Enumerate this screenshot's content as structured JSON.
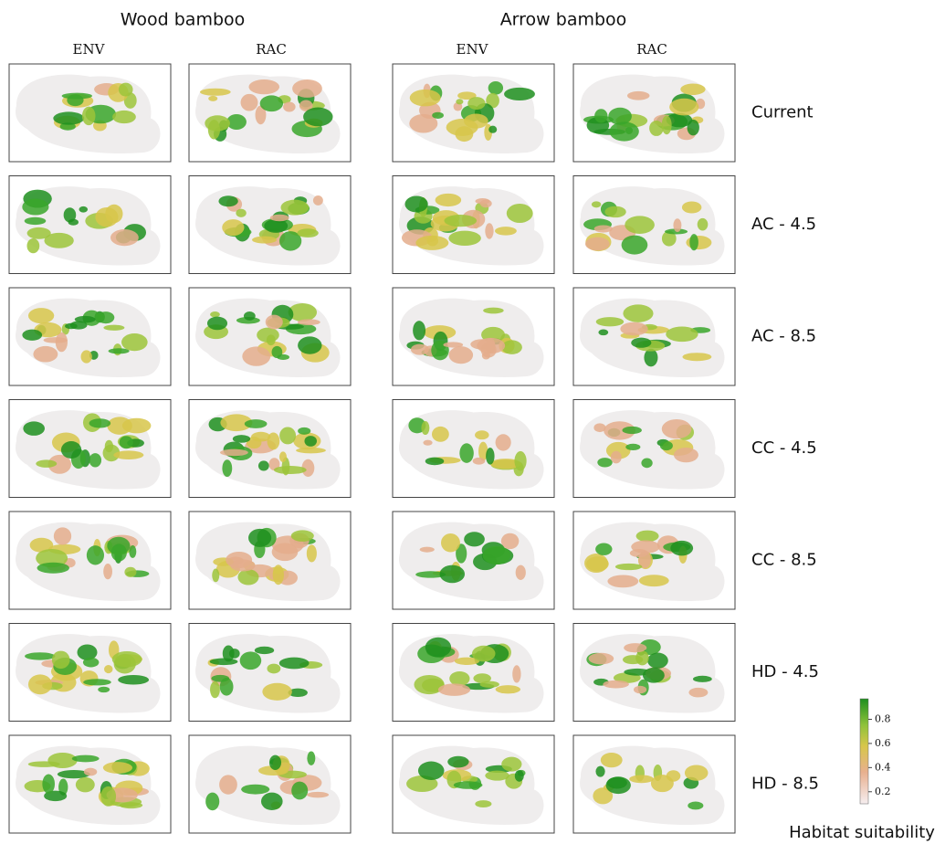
{
  "header": {
    "groups": [
      "Wood bamboo",
      "Arrow bamboo"
    ],
    "columns": [
      "ENV",
      "RAC",
      "ENV",
      "RAC"
    ]
  },
  "rows": [
    "Current",
    "AC - 4.5",
    "AC - 8.5",
    "CC - 4.5",
    "CC - 8.5",
    "HD - 4.5",
    "HD - 8.5"
  ],
  "legend": {
    "title": "Habitat suitability",
    "range": [
      0.1,
      0.97
    ],
    "ticks": [
      0.2,
      0.4,
      0.6,
      0.8
    ]
  }
}
